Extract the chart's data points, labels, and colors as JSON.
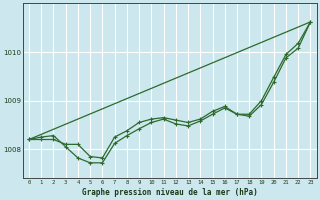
{
  "title": "Graphe pression niveau de la mer (hPa)",
  "bg_color": "#cce8ee",
  "grid_color": "#ffffff",
  "line_color": "#2d6a2d",
  "x_labels": [
    "0",
    "1",
    "2",
    "3",
    "4",
    "5",
    "6",
    "7",
    "8",
    "9",
    "10",
    "11",
    "12",
    "13",
    "14",
    "15",
    "16",
    "17",
    "18",
    "19",
    "20",
    "21",
    "22",
    "23"
  ],
  "ylim": [
    1007.4,
    1011.0
  ],
  "yticks": [
    1008,
    1009,
    1010
  ],
  "series2": [
    1008.2,
    1008.25,
    1008.28,
    1008.05,
    1007.82,
    1007.72,
    1007.72,
    1008.12,
    1008.28,
    1008.42,
    1008.55,
    1008.62,
    1008.52,
    1008.48,
    1008.58,
    1008.72,
    1008.85,
    1008.72,
    1008.68,
    1008.92,
    1009.38,
    1009.88,
    1010.08,
    1010.62
  ],
  "series3": [
    1008.2,
    1008.2,
    1008.2,
    1008.1,
    1008.1,
    1007.85,
    1007.82,
    1008.25,
    1008.38,
    1008.55,
    1008.62,
    1008.65,
    1008.6,
    1008.55,
    1008.62,
    1008.78,
    1008.88,
    1008.72,
    1008.72,
    1009.0,
    1009.48,
    1009.95,
    1010.18,
    1010.62
  ]
}
